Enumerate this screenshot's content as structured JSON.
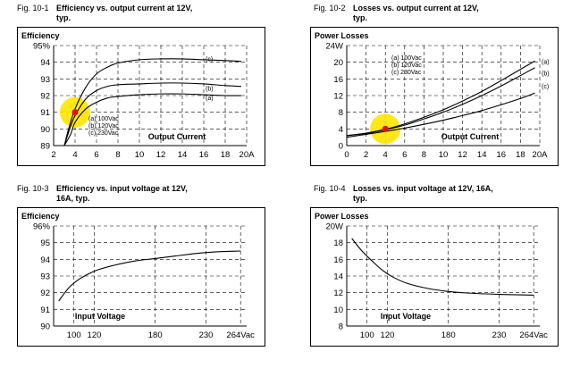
{
  "charts": [
    {
      "fig": "Fig. 10-1",
      "title_line1": "Efficiency vs. output current at 12V,",
      "title_line2": "typ.",
      "chart_data": {
        "type": "line",
        "ylabel": "Efficiency",
        "xlabel": "Output Current",
        "x_ticks": [
          "2",
          "4",
          "6",
          "8",
          "10",
          "12",
          "14",
          "16",
          "18",
          "20A"
        ],
        "x_tick_values": [
          2,
          4,
          6,
          8,
          10,
          12,
          14,
          16,
          18,
          20
        ],
        "y_ticks": [
          "89",
          "90",
          "91",
          "92",
          "93",
          "94",
          "95%"
        ],
        "y_tick_values": [
          89,
          90,
          91,
          92,
          93,
          94,
          95
        ],
        "xlim": [
          2,
          20
        ],
        "ylim": [
          89,
          95
        ],
        "grid": true,
        "legend": [
          "(a) 100Vac",
          "(b) 120Vac",
          "(c) 230Vac"
        ],
        "series": [
          {
            "name": "(a)",
            "x": [
              3.0,
              3.6,
              4.0,
              5.0,
              6.0,
              7.0,
              8.0,
              10.0,
              12.0,
              14.0,
              16.0,
              18.0,
              19.5
            ],
            "y": [
              89.0,
              89.7,
              90.4,
              91.2,
              91.6,
              91.85,
              91.95,
              92.05,
              92.1,
              92.1,
              92.05,
              92.0,
              92.0
            ]
          },
          {
            "name": "(b)",
            "x": [
              3.0,
              3.5,
              4.0,
              5.0,
              6.0,
              7.0,
              8.0,
              10.0,
              12.0,
              14.0,
              16.0,
              18.0,
              19.5
            ],
            "y": [
              89.0,
              90.0,
              90.8,
              91.8,
              92.3,
              92.55,
              92.65,
              92.7,
              92.75,
              92.75,
              92.7,
              92.6,
              92.55
            ]
          },
          {
            "name": "(c)",
            "x": [
              3.0,
              3.4,
              4.0,
              5.0,
              6.0,
              7.0,
              8.0,
              10.0,
              12.0,
              14.0,
              16.0,
              18.0,
              19.5
            ],
            "y": [
              89.0,
              90.0,
              91.2,
              92.5,
              93.3,
              93.7,
              93.95,
              94.15,
              94.2,
              94.2,
              94.15,
              94.1,
              94.05
            ]
          }
        ],
        "series_labels": [
          "(a)",
          "(b)",
          "(c)"
        ],
        "marker": {
          "x": 4,
          "y": 91
        }
      }
    },
    {
      "fig": "Fig. 10-2",
      "title_line1": "Losses vs. output current at 12V,",
      "title_line2": "typ.",
      "chart_data": {
        "type": "line",
        "ylabel": "Power Losses",
        "xlabel": "Output Current",
        "x_ticks": [
          "0",
          "2",
          "4",
          "6",
          "8",
          "10",
          "12",
          "14",
          "16",
          "18",
          "20A"
        ],
        "x_tick_values": [
          0,
          2,
          4,
          6,
          8,
          10,
          12,
          14,
          16,
          18,
          20
        ],
        "y_ticks": [
          "0",
          "4",
          "8",
          "12",
          "16",
          "20",
          "24W"
        ],
        "y_tick_values": [
          0,
          4,
          8,
          12,
          16,
          20,
          24
        ],
        "xlim": [
          0,
          20
        ],
        "ylim": [
          0,
          24
        ],
        "grid": true,
        "legend": [
          "(a) 100Vac",
          "(b) 120Vac",
          "(c) 230Vac"
        ],
        "series": [
          {
            "name": "(a)",
            "x": [
              0,
              2,
              4,
              6,
              8,
              10,
              12,
              14,
              16,
              18,
              19.5
            ],
            "y": [
              2.4,
              3.0,
              3.9,
              5.2,
              6.8,
              8.6,
              10.7,
              13.0,
              15.6,
              18.3,
              20.3
            ]
          },
          {
            "name": "(b)",
            "x": [
              0,
              2,
              4,
              6,
              8,
              10,
              12,
              14,
              16,
              18,
              19.5
            ],
            "y": [
              2.4,
              2.9,
              3.8,
              4.9,
              6.4,
              8.0,
              9.9,
              12.0,
              14.3,
              16.8,
              18.7
            ]
          },
          {
            "name": "(c)",
            "x": [
              0,
              2,
              4,
              6,
              8,
              10,
              12,
              14,
              16,
              18,
              19.5
            ],
            "y": [
              2.0,
              2.7,
              3.4,
              4.2,
              5.1,
              6.1,
              7.2,
              8.4,
              9.8,
              11.3,
              12.6
            ]
          }
        ],
        "series_labels": [
          "(a)",
          "(b)",
          "(c)"
        ],
        "marker": {
          "x": 4,
          "y": 4
        }
      }
    },
    {
      "fig": "Fig. 10-3",
      "title_line1": "Efficiency vs. input voltage at 12V,",
      "title_line2": "16A, typ.",
      "chart_data": {
        "type": "line",
        "ylabel": "Efficiency",
        "xlabel": "Input Voltage",
        "x_ticks": [
          "100",
          "120",
          "180",
          "230",
          "264Vac"
        ],
        "x_tick_values": [
          100,
          120,
          180,
          230,
          264
        ],
        "y_ticks": [
          "90",
          "91",
          "92",
          "93",
          "94",
          "95",
          "96%"
        ],
        "y_tick_values": [
          90,
          91,
          92,
          93,
          94,
          95,
          96
        ],
        "xlim": [
          80,
          270
        ],
        "ylim": [
          90,
          96
        ],
        "grid": true,
        "series": [
          {
            "name": "",
            "x": [
              85,
              95,
              105,
              115,
              125,
              140,
              160,
              180,
              200,
              220,
              240,
              264
            ],
            "y": [
              91.5,
              92.3,
              92.8,
              93.15,
              93.4,
              93.65,
              93.9,
              94.05,
              94.2,
              94.35,
              94.45,
              94.5
            ]
          }
        ]
      }
    },
    {
      "fig": "Fig. 10-4",
      "title_line1": "Losses vs. input voltage at 12V, 16A,",
      "title_line2": "typ.",
      "chart_data": {
        "type": "line",
        "ylabel": "Power Losses",
        "xlabel": "Input Voltage",
        "x_ticks": [
          "100",
          "120",
          "180",
          "230",
          "264Vac"
        ],
        "x_tick_values": [
          100,
          120,
          180,
          230,
          264
        ],
        "y_ticks": [
          "8",
          "10",
          "12",
          "14",
          "16",
          "18",
          "20W"
        ],
        "y_tick_values": [
          8,
          10,
          12,
          14,
          16,
          18,
          20
        ],
        "xlim": [
          80,
          270
        ],
        "ylim": [
          8,
          20
        ],
        "grid": true,
        "series": [
          {
            "name": "",
            "x": [
              85,
              95,
              105,
              115,
              125,
              140,
              160,
              180,
              200,
              230,
              264
            ],
            "y": [
              18.5,
              17.0,
              15.8,
              14.7,
              13.9,
              13.1,
              12.5,
              12.15,
              11.95,
              11.8,
              11.7
            ]
          }
        ]
      }
    }
  ]
}
